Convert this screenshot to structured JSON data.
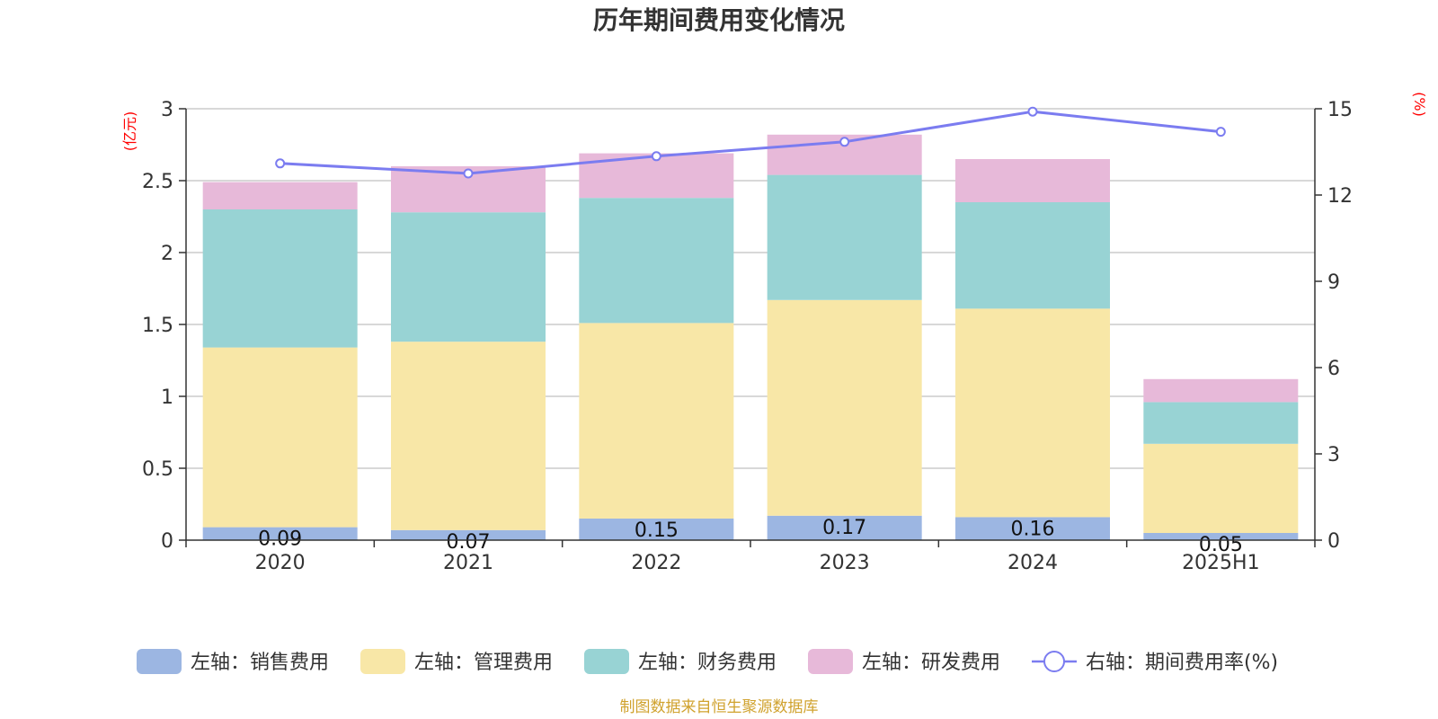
{
  "colors": {
    "sales": "#9cb6e2",
    "admin": "#f8e7a7",
    "finance": "#98d3d4",
    "rnd": "#e7b9d9",
    "rate": "#7b7cf0",
    "unit": "#ff0000",
    "source": "#d0a22e",
    "grid": "#cccccc",
    "axis": "#333333"
  },
  "chart_data": {
    "type": "bar",
    "title": "历年期间费用变化情况",
    "categories": [
      "2020",
      "2021",
      "2022",
      "2023",
      "2024",
      "2025H1"
    ],
    "left_axis": {
      "unit": "(亿元)",
      "ylim": [
        0,
        3
      ],
      "ticks": [
        "0",
        "0.5",
        "1",
        "1.5",
        "2",
        "2.5",
        "3"
      ]
    },
    "right_axis": {
      "unit": "(%)",
      "ylim": [
        0,
        15
      ],
      "ticks": [
        "0",
        "3",
        "6",
        "9",
        "12",
        "15"
      ]
    },
    "series": [
      {
        "name": "左轴：销售费用",
        "colorKey": "sales",
        "stack": true,
        "values": [
          0.09,
          0.07,
          0.15,
          0.17,
          0.16,
          0.05
        ],
        "labels": [
          "0.09",
          "0.07",
          "0.15",
          "0.17",
          "0.16",
          "0.05"
        ]
      },
      {
        "name": "左轴：管理费用",
        "colorKey": "admin",
        "stack": true,
        "values": [
          1.25,
          1.31,
          1.36,
          1.5,
          1.45,
          0.62
        ]
      },
      {
        "name": "左轴：财务费用",
        "colorKey": "finance",
        "stack": true,
        "values": [
          0.96,
          0.9,
          0.87,
          0.87,
          0.74,
          0.29
        ]
      },
      {
        "name": "左轴：研发费用",
        "colorKey": "rnd",
        "stack": true,
        "values": [
          0.19,
          0.32,
          0.31,
          0.28,
          0.3,
          0.16
        ]
      },
      {
        "name": "右轴：期间费用率(%)",
        "colorKey": "rate",
        "type": "line",
        "axis": "right",
        "values": [
          13.1,
          12.75,
          13.35,
          13.85,
          14.9,
          14.2
        ]
      }
    ],
    "legend_position": "bottom",
    "grid": true
  },
  "source": "制图数据来自恒生聚源数据库"
}
